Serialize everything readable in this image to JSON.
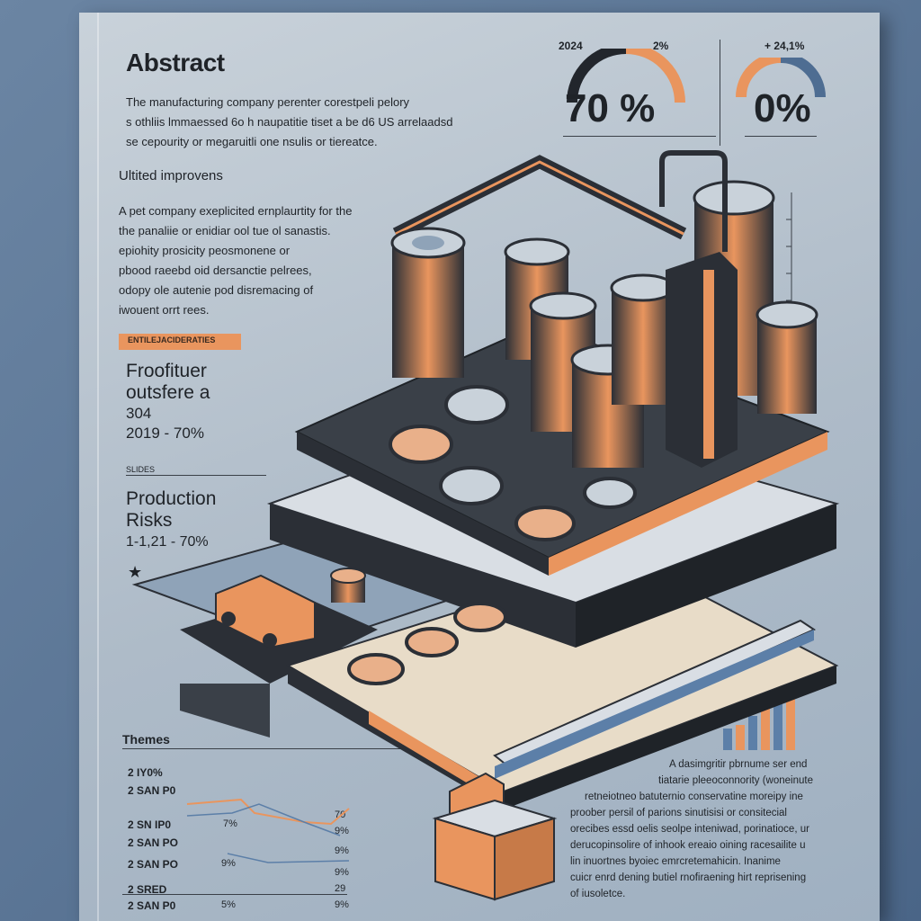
{
  "colors": {
    "accent": "#e9955e",
    "dark": "#2b2f36",
    "panel": "#aebbc8"
  },
  "abstract": {
    "title": "Abstract",
    "lines": [
      "The manufacturing company perenter corestpeli pelory",
      "s othliis lmmaessed 6o h naupatitie tiset a be d6 US arrelaadsd",
      "se cepourity or megaruitli one nsulis or tiereatce."
    ]
  },
  "unit_section": {
    "heading": "Ultited improvens",
    "lines": [
      "A pet company exeplicited ernplaurtity for the",
      "the panaliie or enidiar ool tue ol sanastis.",
      "epiohity prosicity peosmonene or",
      "pbood raeebd oid dersanctie pelrees,",
      "odopy ole autenie pod disremacing of",
      "iwouent orrt rees."
    ]
  },
  "tag_label": "ENTILEJACIDERATIES",
  "froofituer": {
    "line1": "Froofituer",
    "line2": "outsfere a",
    "line3": "304",
    "line4": "2019 - 70%"
  },
  "small_label": "SLIDES",
  "production": {
    "line1": "Production",
    "line2": "Risks",
    "line3": "1-1,21 - 70%",
    "star": "★"
  },
  "stat1": {
    "year_left": "2024",
    "year_right": "2%",
    "value": "70 %"
  },
  "stat2": {
    "label": "+ 24,1%",
    "value": "0%"
  },
  "themes": {
    "heading": "Themes",
    "rows": [
      {
        "label": "2 IY0%",
        "val": ""
      },
      {
        "label": "2 SAN P0",
        "val": "70"
      },
      {
        "label": "2 SN IP0",
        "val": "9%"
      },
      {
        "label": "2 SAN PO",
        "val": "9%"
      },
      {
        "label": "2 SAN PO",
        "val": "9%"
      },
      {
        "label": "2 SRED",
        "val": "29"
      },
      {
        "label": "2 SAN P0",
        "val": "9%"
      }
    ],
    "col_vals": [
      "7%",
      "9%",
      "5%"
    ]
  },
  "right_para": [
    "A dasimgritir pbrnume ser end",
    "tiatarie pleeoconnority (woneinute",
    "retneiotneo batuternio conservatine moreipy ine",
    "proober persil of parions sinutisisi or consitecial",
    "orecibes essd oelis seolpe inteniwad, porinatioce, ur",
    "derucopinsolire of inhook ereaio oining racesailite u",
    "lin inuortnes byoiec emrcretemahicin. Inanime",
    "cuicr enrd dening butiel rnofiraening hirt reprisening",
    "of iusoletce."
  ]
}
